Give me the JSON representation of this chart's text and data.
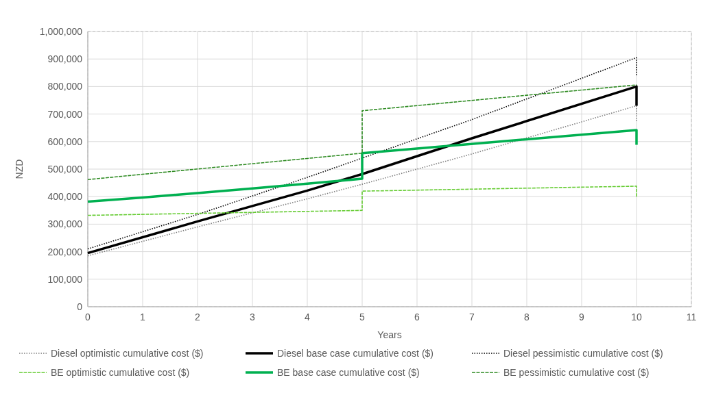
{
  "chart_data": {
    "type": "line",
    "xlabel": "Years",
    "ylabel": "NZD",
    "xlim": [
      0,
      11
    ],
    "xticks": [
      0,
      1,
      2,
      3,
      4,
      5,
      6,
      7,
      8,
      9,
      10,
      11
    ],
    "ylim": [
      0,
      1000000
    ],
    "yticks": [
      {
        "value": 0,
        "label": "0"
      },
      {
        "value": 100000,
        "label": "100,000"
      },
      {
        "value": 200000,
        "label": "200,000"
      },
      {
        "value": 300000,
        "label": "300,000"
      },
      {
        "value": 400000,
        "label": "400,000"
      },
      {
        "value": 500000,
        "label": "500,000"
      },
      {
        "value": 600000,
        "label": "600,000"
      },
      {
        "value": 700000,
        "label": "700,000"
      },
      {
        "value": 800000,
        "label": "800,000"
      },
      {
        "value": 900000,
        "label": "900,000"
      },
      {
        "value": 1000000,
        "label": "1,000,000"
      }
    ],
    "grid": true,
    "legend": "bottom",
    "series": [
      {
        "name": "Diesel optimistic cumulative cost ($)",
        "color": "#7f7f7f",
        "line_style": "dotted",
        "x": [
          0,
          2,
          4,
          5,
          7,
          10,
          10
        ],
        "values": [
          185000,
          290000,
          392000,
          445000,
          555000,
          730000,
          670000
        ]
      },
      {
        "name": "Diesel base case cumulative cost ($)",
        "color": "#000000",
        "line_style": "solid",
        "x": [
          0,
          2,
          4,
          5,
          7,
          10,
          10
        ],
        "values": [
          195000,
          310000,
          422000,
          482000,
          612000,
          800000,
          730000
        ]
      },
      {
        "name": "Diesel pessimistic cumulative cost ($)",
        "color": "#000000",
        "line_style": "dotted",
        "x": [
          0,
          2,
          4,
          5,
          7,
          10,
          10
        ],
        "values": [
          210000,
          335000,
          470000,
          540000,
          680000,
          905000,
          840000
        ]
      },
      {
        "name": "BE optimistic cumulative cost ($)",
        "color": "#66cc33",
        "line_style": "dashed",
        "x": [
          0,
          5,
          5,
          10,
          10
        ],
        "values": [
          332000,
          350000,
          420000,
          438000,
          398000
        ]
      },
      {
        "name": "BE base case cumulative cost ($)",
        "color": "#00b050",
        "line_style": "solid",
        "x": [
          0,
          1,
          2,
          3,
          4,
          5,
          5,
          10,
          10
        ],
        "values": [
          382000,
          397000,
          413000,
          430000,
          447000,
          465000,
          558000,
          642000,
          588000
        ]
      },
      {
        "name": "BE pessimistic cumulative cost ($)",
        "color": "#2e8b22",
        "line_style": "dashed",
        "x": [
          0,
          5,
          5,
          10
        ],
        "values": [
          462000,
          558000,
          712000,
          806000
        ]
      }
    ]
  }
}
